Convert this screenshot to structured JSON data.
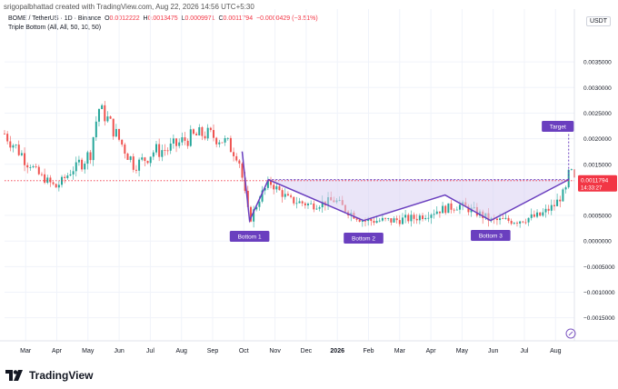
{
  "header": {
    "created_by": "srigopalbhattad created with TradingView.com, Aug 22, 2026 14:56 UTC+5:30",
    "symbol": "BOME / TetherUS · 1D · Binance",
    "ohlc": {
      "o_label": "O",
      "o": "0.0012222",
      "h_label": "H",
      "h": "0.0013475",
      "l_label": "L",
      "l": "0.0009971",
      "c_label": "C",
      "c": "0.0011794",
      "change": "−0.0000429 (−3.51%)"
    },
    "indicator": "Triple Bottom (All, All, 50, 10, 50)",
    "currency": "USDT"
  },
  "footer": {
    "brand": "TradingView",
    "logo_icon": "tradingview-logo-icon"
  },
  "colors": {
    "up": "#26a69a",
    "down": "#ef5350",
    "pattern": "#6a3fbf",
    "fill": "#d9cff2",
    "current": "#f23645"
  },
  "chart_data": {
    "type": "candlestick",
    "y_axis_ticks": [
      "0.0035000",
      "0.0030000",
      "0.0025000",
      "0.0020000",
      "0.0015000",
      "0.0005000",
      "0.0000000",
      "−0.0005000",
      "−0.0010000",
      "−0.0015000"
    ],
    "y_range": [
      -0.00195,
      0.004
    ],
    "x_axis_ticks": [
      "Mar",
      "Apr",
      "May",
      "Jun",
      "Jul",
      "Aug",
      "Sep",
      "Oct",
      "Nov",
      "Dec",
      "2026",
      "Feb",
      "Mar",
      "Apr",
      "May",
      "Jun",
      "Jul",
      "Aug"
    ],
    "current_price": "0.0011794",
    "countdown": "14:33:27",
    "labels": {
      "bottom1": "Bottom 1",
      "bottom2": "Bottom 2",
      "bottom3": "Bottom 3",
      "target": "Target"
    },
    "pattern": {
      "neckline": 0.0012,
      "target": 0.002,
      "points": [
        {
          "t": 0.417,
          "v": 0.00175
        },
        {
          "t": 0.43,
          "v": 0.0004
        },
        {
          "t": 0.463,
          "v": 0.0012
        },
        {
          "t": 0.63,
          "v": 0.0004
        },
        {
          "t": 0.773,
          "v": 0.0009
        },
        {
          "t": 0.853,
          "v": 0.0004
        },
        {
          "t": 0.99,
          "v": 0.0012
        }
      ]
    },
    "price_path": [
      {
        "t": 0.0,
        "v": 0.0021
      },
      {
        "t": 0.03,
        "v": 0.0017
      },
      {
        "t": 0.06,
        "v": 0.0013
      },
      {
        "t": 0.09,
        "v": 0.00105
      },
      {
        "t": 0.12,
        "v": 0.0014
      },
      {
        "t": 0.15,
        "v": 0.0017
      },
      {
        "t": 0.165,
        "v": 0.0026
      },
      {
        "t": 0.18,
        "v": 0.0024
      },
      {
        "t": 0.2,
        "v": 0.002
      },
      {
        "t": 0.23,
        "v": 0.00145
      },
      {
        "t": 0.26,
        "v": 0.00175
      },
      {
        "t": 0.29,
        "v": 0.0018
      },
      {
        "t": 0.32,
        "v": 0.002
      },
      {
        "t": 0.35,
        "v": 0.0021
      },
      {
        "t": 0.38,
        "v": 0.002
      },
      {
        "t": 0.41,
        "v": 0.0017
      },
      {
        "t": 0.43,
        "v": 0.0004
      },
      {
        "t": 0.45,
        "v": 0.0009
      },
      {
        "t": 0.465,
        "v": 0.00115
      },
      {
        "t": 0.5,
        "v": 0.0008
      },
      {
        "t": 0.54,
        "v": 0.0007
      },
      {
        "t": 0.58,
        "v": 0.0008
      },
      {
        "t": 0.6,
        "v": 0.0006
      },
      {
        "t": 0.63,
        "v": 0.0004
      },
      {
        "t": 0.68,
        "v": 0.0004
      },
      {
        "t": 0.72,
        "v": 0.00045
      },
      {
        "t": 0.76,
        "v": 0.0006
      },
      {
        "t": 0.8,
        "v": 0.0007
      },
      {
        "t": 0.83,
        "v": 0.00055
      },
      {
        "t": 0.855,
        "v": 0.0004
      },
      {
        "t": 0.9,
        "v": 0.0004
      },
      {
        "t": 0.94,
        "v": 0.0005
      },
      {
        "t": 0.965,
        "v": 0.0007
      },
      {
        "t": 0.985,
        "v": 0.001
      },
      {
        "t": 0.992,
        "v": 0.00145
      },
      {
        "t": 1.0,
        "v": 0.00118
      }
    ]
  }
}
